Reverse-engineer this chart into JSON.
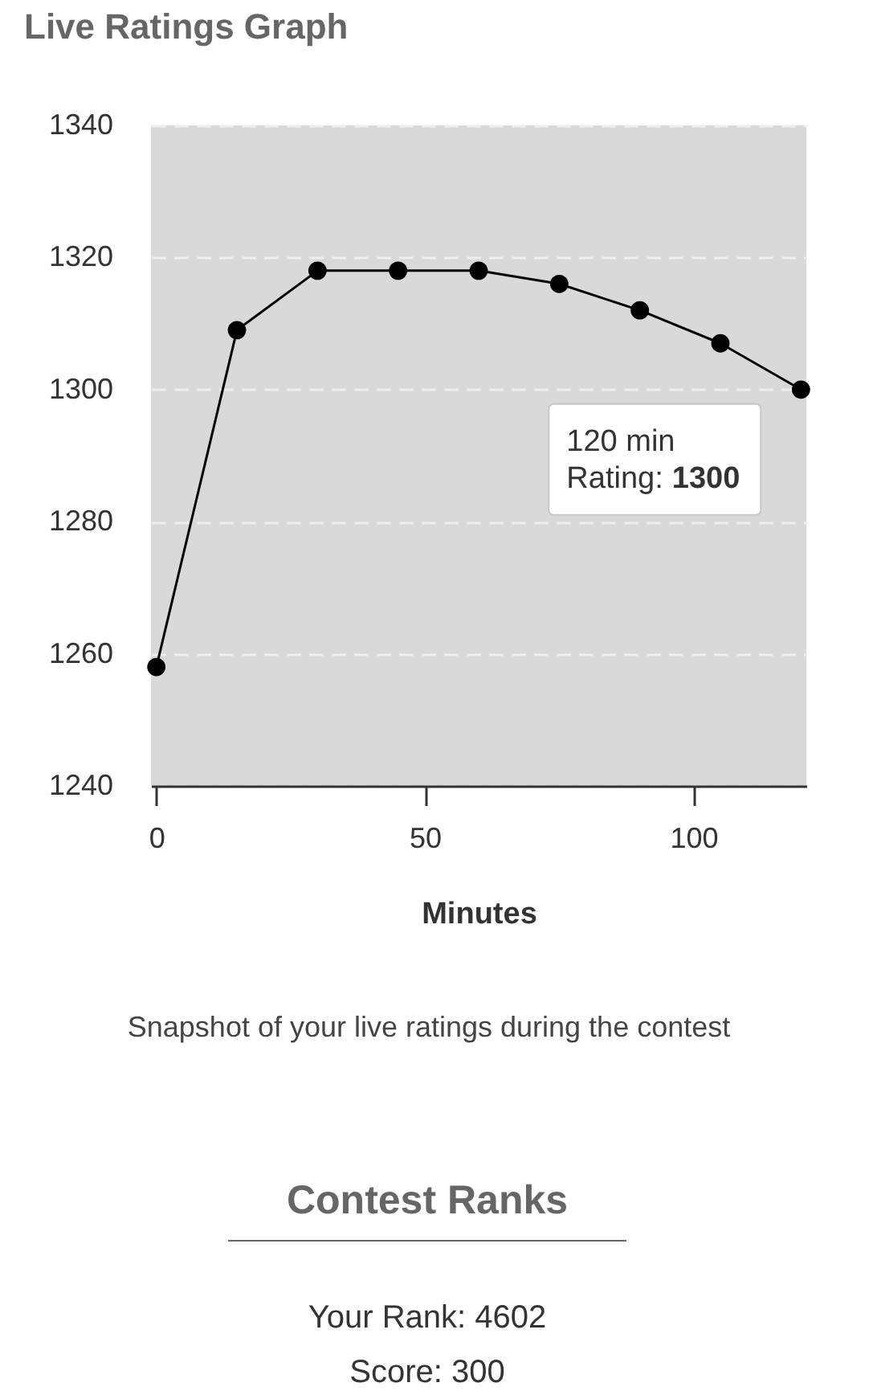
{
  "chart_data": [
    {
      "type": "line",
      "title": "Live Ratings Graph",
      "xlabel": "Minutes",
      "x": [
        0,
        15,
        30,
        45,
        60,
        75,
        90,
        105,
        120
      ],
      "series": [
        {
          "color": "#000000",
          "values": [
            1258,
            1309,
            1318,
            1318,
            1318,
            1316,
            1312,
            1307,
            1300
          ]
        }
      ],
      "xlim": [
        -1,
        121
      ],
      "xticks": [
        0,
        50,
        100
      ],
      "ylim": [
        1240,
        1340
      ],
      "yticks": [
        1240,
        1260,
        1280,
        1300,
        1320,
        1340
      ],
      "grid": "y",
      "marker": "circle",
      "line_style": "solid",
      "annotations": [
        {
          "text": "120 min\nRating: 1300",
          "x": 120,
          "y": 1300
        },
        "Snapshot of your live ratings during the contest"
      ]
    },
    {
      "type": "other",
      "title": "Contest Ranks",
      "annotations": [
        "Your Rank: 4602",
        "Score: 300"
      ]
    }
  ]
}
